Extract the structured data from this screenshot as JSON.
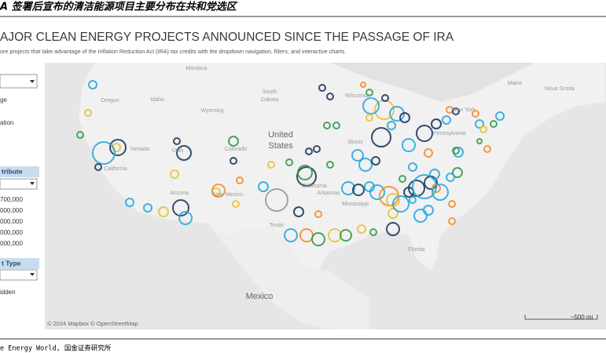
{
  "header": {
    "caption": "A 签署后宣布的清洁能源项目主要分布在共和党选区"
  },
  "dashboard": {
    "title": "AJOR CLEAN ENERGY PROJECTS ANNOUNCED SINCE THE PASSAGE OF IRA",
    "subtitle": "ore projects that take advantage of the Inflation Reduction Act (IRA) tax credits with the dropdown navigation, filters, and interactive charts."
  },
  "sidebar": {
    "items": [
      "ge",
      "ation"
    ],
    "section1": {
      "title": "tribute",
      "values": [
        "700,000",
        "000,000",
        "000,000",
        "000,000",
        "000,000"
      ]
    },
    "section2": {
      "title": "t Type",
      "items": [
        "idden"
      ]
    }
  },
  "map": {
    "labels": [
      "Montana",
      "Oregon",
      "Idaho",
      "Wyoming",
      "South",
      "Dakota",
      "Wisconsin",
      "New York",
      "Maine",
      "Nova Scotia",
      "Nevada",
      "Utah",
      "Colorado",
      "United",
      "States",
      "California",
      "Illinois",
      "Pennsylvania",
      "Arizona",
      "New Mexico",
      "Oklahoma",
      "Arkansas",
      "Mississippi",
      "Texas",
      "Florida",
      "Mexico"
    ],
    "attribution": "© 2024 Mapbox © OpenStreetMap",
    "scale": "~500 mi"
  },
  "footer": {
    "source": "e Energy World, 国金证券研究所"
  }
}
